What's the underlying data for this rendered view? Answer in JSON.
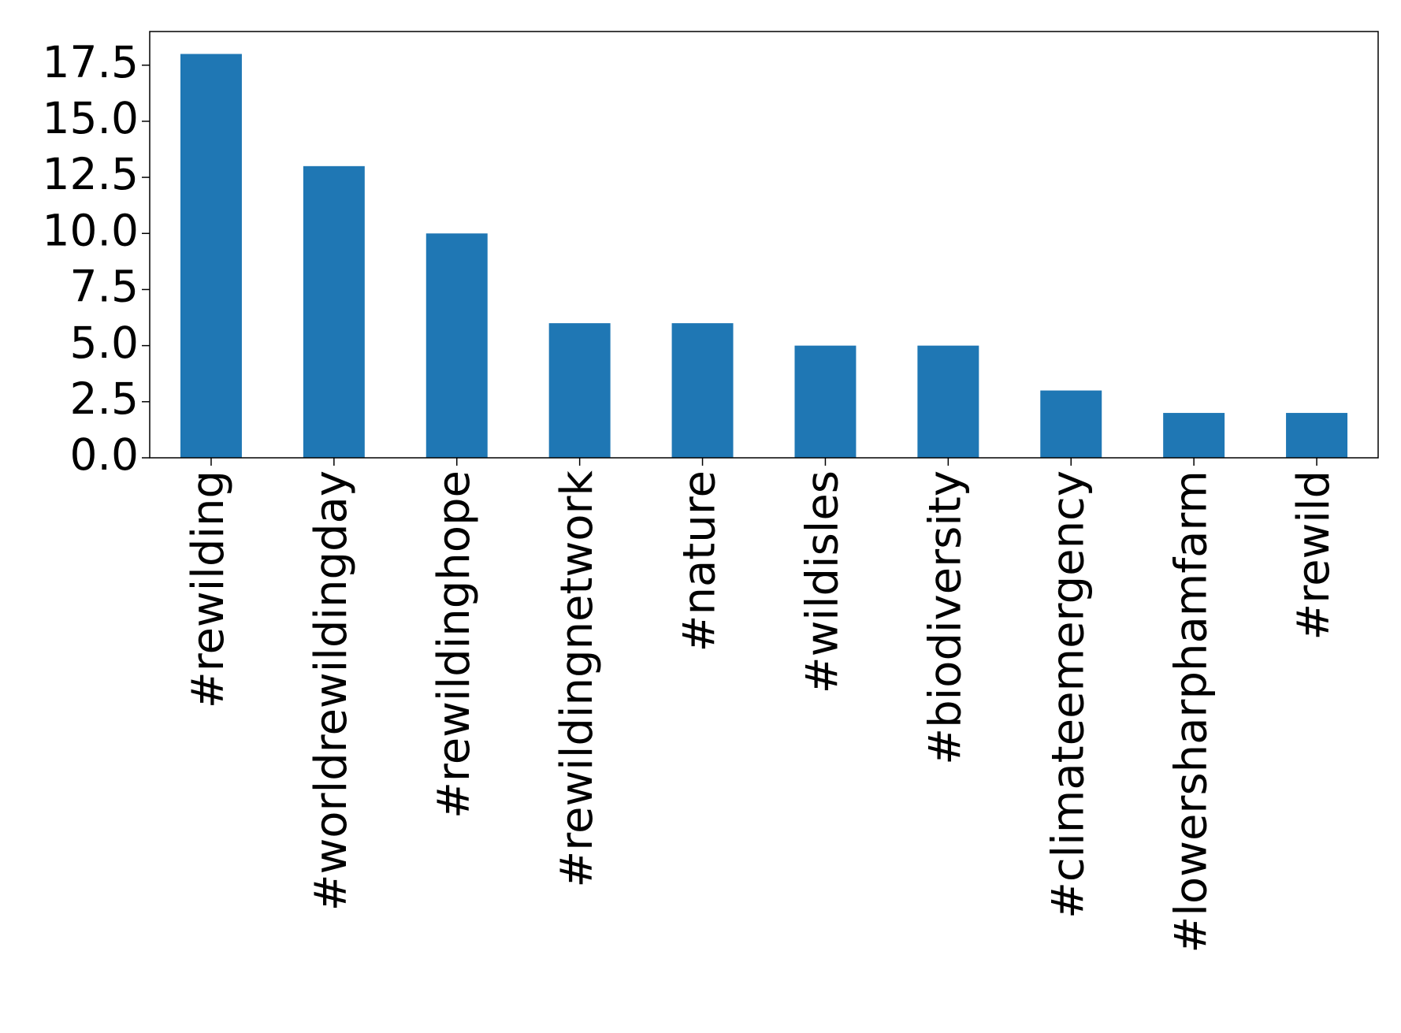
{
  "chart_data": {
    "type": "bar",
    "categories": [
      "#rewilding",
      "#worldrewildingday",
      "#rewildinghope",
      "#rewildingnetwork",
      "#nature",
      "#wildisles",
      "#biodiversity",
      "#climateemergency",
      "#lowersharphamfarm",
      "#rewild"
    ],
    "values": [
      18,
      13,
      10,
      6,
      6,
      5,
      5,
      3,
      2,
      2
    ],
    "color": "#1f77b4",
    "ylim": [
      0,
      19
    ],
    "yticks": [
      {
        "value": 0,
        "label": "0.0"
      },
      2.5,
      {
        "value": 5,
        "label": "5.0"
      },
      7.5,
      {
        "value": 10,
        "label": "10.0"
      },
      12.5,
      {
        "value": 15,
        "label": "15.0"
      },
      17.5
    ],
    "grid": false
  }
}
